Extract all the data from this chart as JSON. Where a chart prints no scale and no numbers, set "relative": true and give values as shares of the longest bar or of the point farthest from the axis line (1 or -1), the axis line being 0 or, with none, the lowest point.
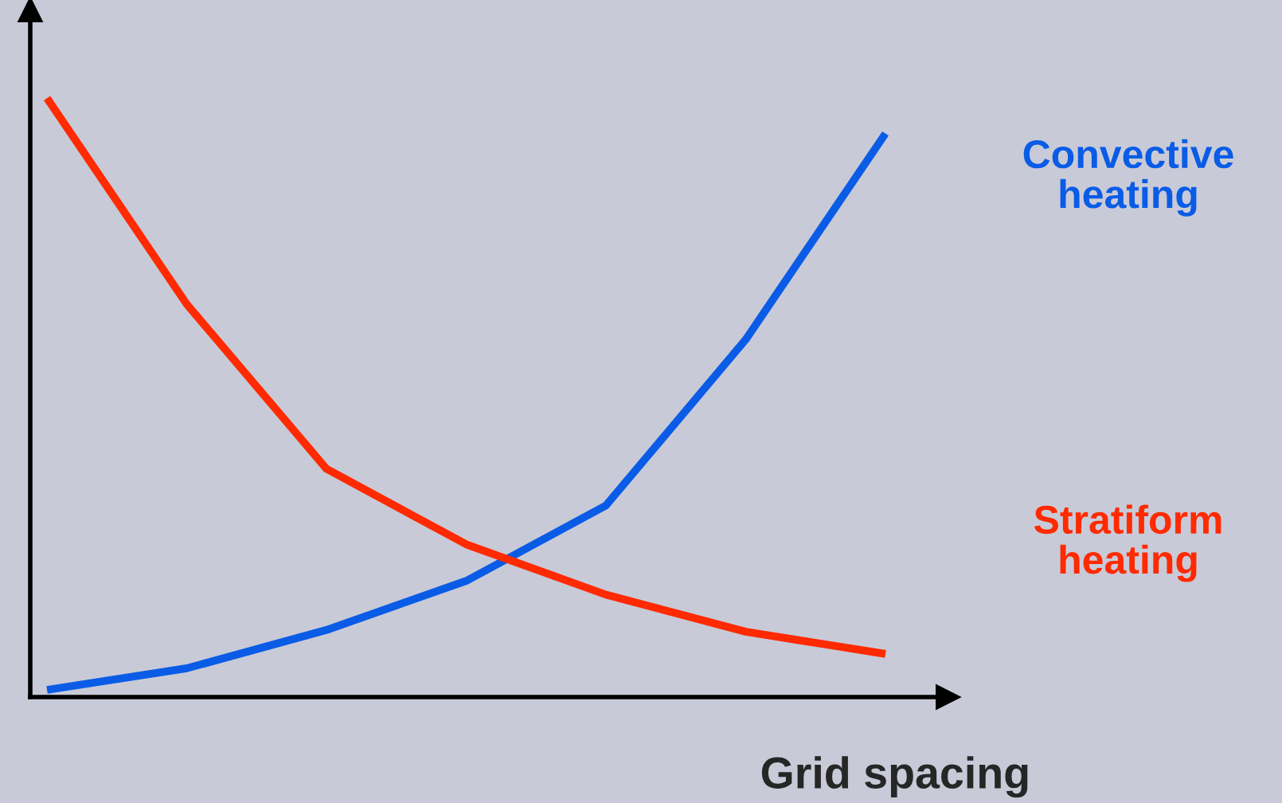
{
  "chart_data": {
    "type": "line",
    "relative": true,
    "xlabel": "Grid spacing",
    "categories": [
      null,
      null,
      null,
      null,
      null,
      null,
      null
    ],
    "series": [
      {
        "name": "Convective heating",
        "color": "#0a5ce6",
        "values": [
          0.012,
          0.048,
          0.112,
          0.194,
          0.32,
          0.597,
          0.941
        ]
      },
      {
        "name": "Stratiform heating",
        "color": "#ff2a00",
        "values": [
          1.0,
          0.656,
          0.381,
          0.255,
          0.171,
          0.109,
          0.072
        ]
      }
    ]
  }
}
